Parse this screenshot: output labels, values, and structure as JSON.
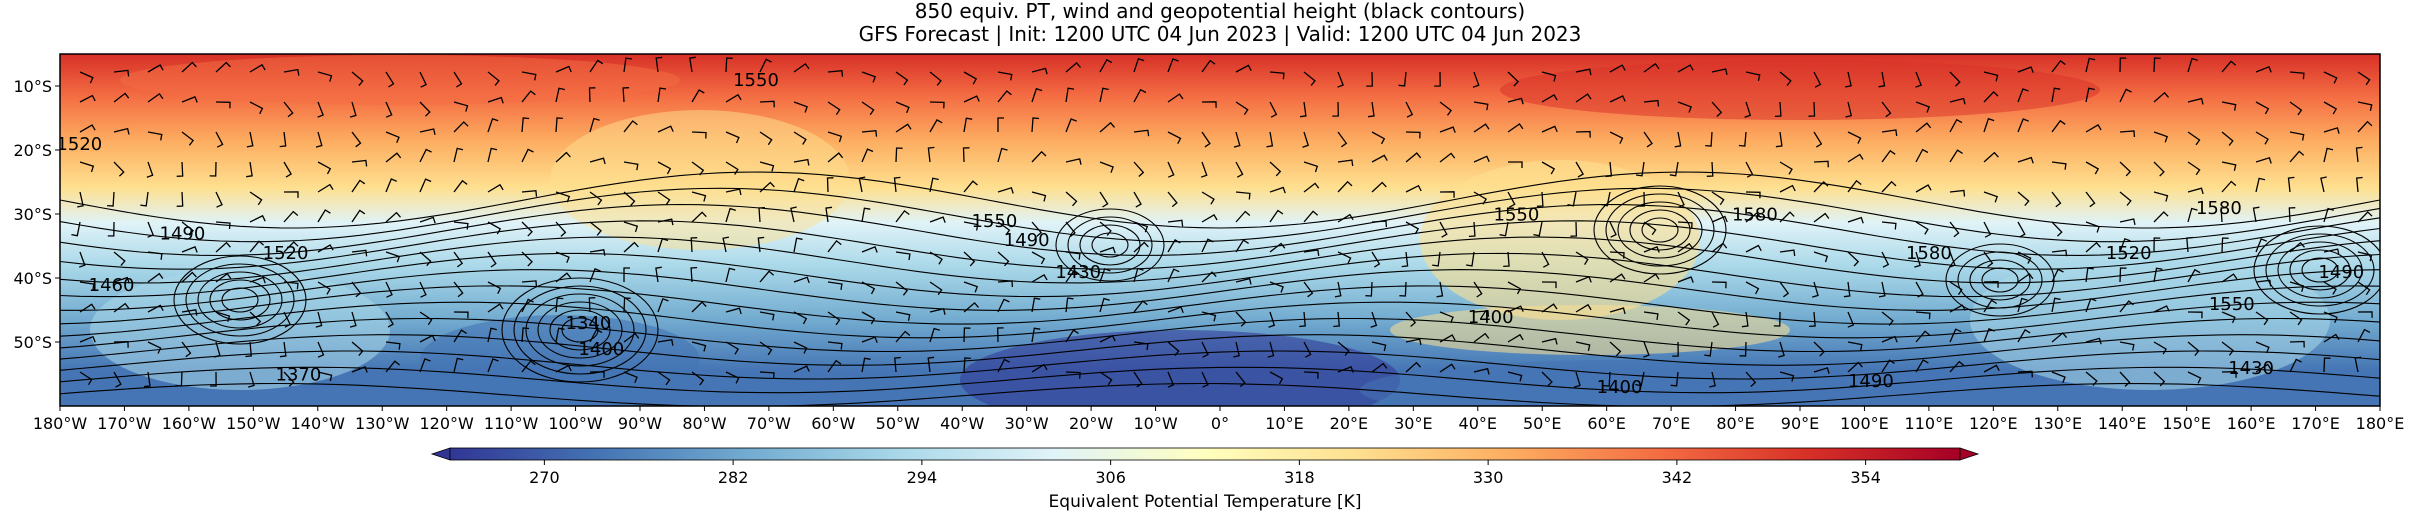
{
  "title": {
    "line1": "850 equiv. PT, wind and geopotential height (black contours)",
    "line2": "GFS Forecast | Init: 1200 UTC 04 Jun 2023 | Valid: 1200 UTC 04 Jun 2023"
  },
  "map": {
    "lon_range": [
      -180,
      180
    ],
    "lat_range": [
      -60,
      -5
    ],
    "lat_ticks": [
      {
        "value": -10,
        "label": "10°S"
      },
      {
        "value": -20,
        "label": "20°S"
      },
      {
        "value": -30,
        "label": "30°S"
      },
      {
        "value": -40,
        "label": "40°S"
      },
      {
        "value": -50,
        "label": "50°S"
      }
    ],
    "lon_ticks": [
      {
        "value": -180,
        "label": "180°W"
      },
      {
        "value": -170,
        "label": "170°W"
      },
      {
        "value": -160,
        "label": "160°W"
      },
      {
        "value": -150,
        "label": "150°W"
      },
      {
        "value": -140,
        "label": "140°W"
      },
      {
        "value": -130,
        "label": "130°W"
      },
      {
        "value": -120,
        "label": "120°W"
      },
      {
        "value": -110,
        "label": "110°W"
      },
      {
        "value": -100,
        "label": "100°W"
      },
      {
        "value": -90,
        "label": "90°W"
      },
      {
        "value": -80,
        "label": "80°W"
      },
      {
        "value": -70,
        "label": "70°W"
      },
      {
        "value": -60,
        "label": "60°W"
      },
      {
        "value": -50,
        "label": "50°W"
      },
      {
        "value": -40,
        "label": "40°W"
      },
      {
        "value": -30,
        "label": "30°W"
      },
      {
        "value": -20,
        "label": "20°W"
      },
      {
        "value": -10,
        "label": "10°W"
      },
      {
        "value": 0,
        "label": "0°"
      },
      {
        "value": 10,
        "label": "10°E"
      },
      {
        "value": 20,
        "label": "20°E"
      },
      {
        "value": 30,
        "label": "30°E"
      },
      {
        "value": 40,
        "label": "40°E"
      },
      {
        "value": 50,
        "label": "50°E"
      },
      {
        "value": 60,
        "label": "60°E"
      },
      {
        "value": 70,
        "label": "70°E"
      },
      {
        "value": 80,
        "label": "80°E"
      },
      {
        "value": 90,
        "label": "90°E"
      },
      {
        "value": 100,
        "label": "100°E"
      },
      {
        "value": 110,
        "label": "110°E"
      },
      {
        "value": 120,
        "label": "120°E"
      },
      {
        "value": 130,
        "label": "130°E"
      },
      {
        "value": 140,
        "label": "140°E"
      },
      {
        "value": 150,
        "label": "150°E"
      },
      {
        "value": 160,
        "label": "160°E"
      },
      {
        "value": 170,
        "label": "170°E"
      },
      {
        "value": 180,
        "label": "180°E"
      }
    ],
    "height_labels": [
      {
        "text": "1490",
        "lon": -161,
        "lat": -34
      },
      {
        "text": "1520",
        "lon": -145,
        "lat": -37
      },
      {
        "text": "1460",
        "lon": -172,
        "lat": -42
      },
      {
        "text": "1370",
        "lon": -143,
        "lat": -56
      },
      {
        "text": "1520",
        "lon": -177,
        "lat": -20
      },
      {
        "text": "1340",
        "lon": -98,
        "lat": -48
      },
      {
        "text": "1400",
        "lon": -96,
        "lat": -52
      },
      {
        "text": "1550",
        "lon": -72,
        "lat": -10
      },
      {
        "text": "1550",
        "lon": -35,
        "lat": -32
      },
      {
        "text": "1490",
        "lon": -30,
        "lat": -35
      },
      {
        "text": "1430",
        "lon": -22,
        "lat": -40
      },
      {
        "text": "1550",
        "lon": 46,
        "lat": -31
      },
      {
        "text": "1400",
        "lon": 42,
        "lat": -47
      },
      {
        "text": "1580",
        "lon": 83,
        "lat": -31
      },
      {
        "text": "1400",
        "lon": 62,
        "lat": -58
      },
      {
        "text": "1490",
        "lon": 101,
        "lat": -57
      },
      {
        "text": "1580",
        "lon": 110,
        "lat": -37
      },
      {
        "text": "1520",
        "lon": 141,
        "lat": -37
      },
      {
        "text": "1580",
        "lon": 155,
        "lat": -30
      },
      {
        "text": "1550",
        "lon": 157,
        "lat": -45
      },
      {
        "text": "1430",
        "lon": 160,
        "lat": -55
      },
      {
        "text": "1490",
        "lon": 174,
        "lat": -40
      }
    ]
  },
  "colorbar": {
    "label": "Equivalent Potential Temperature [K]",
    "range": [
      264,
      360
    ],
    "ticks": [
      "270",
      "282",
      "294",
      "306",
      "318",
      "330",
      "342",
      "354"
    ],
    "tick_values": [
      270,
      282,
      294,
      306,
      318,
      330,
      342,
      354
    ],
    "colors": [
      "#313695",
      "#4575b4",
      "#74add1",
      "#abd9e9",
      "#e0f3f8",
      "#ffffbf",
      "#fee090",
      "#fdae61",
      "#f46d43",
      "#d73027",
      "#a50026"
    ]
  }
}
